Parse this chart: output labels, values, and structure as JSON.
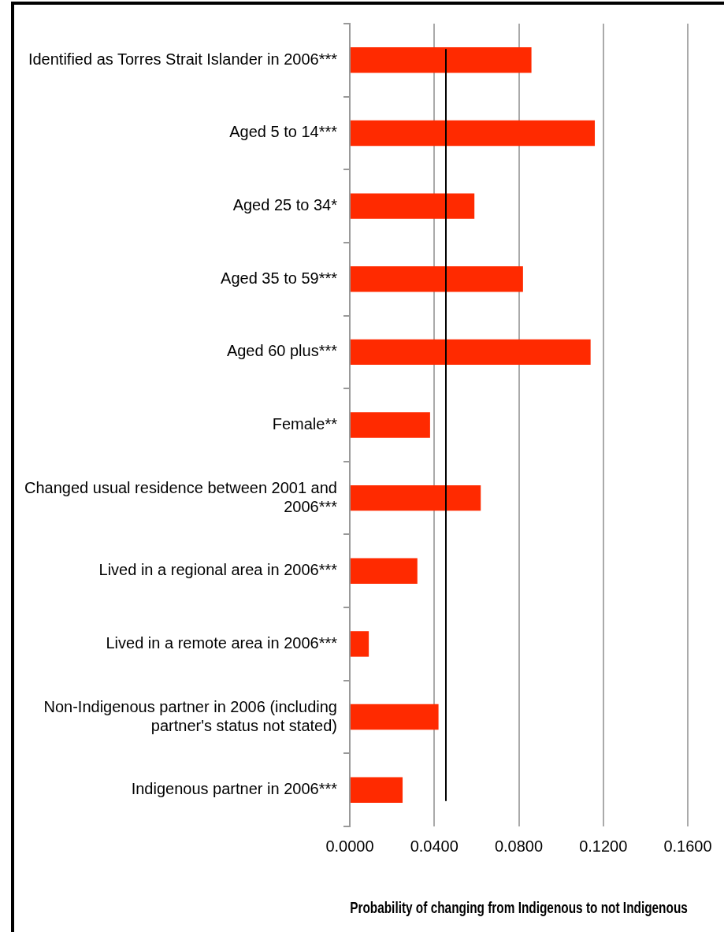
{
  "chart_data": {
    "type": "bar",
    "orientation": "horizontal",
    "xlabel": "Probability of changing from Indigenous to not Indigenous",
    "categories": [
      "Identified as Torres Strait Islander in 2006***",
      "Aged 5 to 14***",
      "Aged 25 to 34*",
      "Aged 35 to 59***",
      "Aged 60 plus***",
      "Female**",
      "Changed usual residence between 2001 and 2006***",
      "Lived in a regional area in 2006***",
      "Lived in a remote area in 2006***",
      "Non-Indigenous partner in 2006 (including partner's status not stated)",
      "Indigenous partner in 2006***"
    ],
    "values": [
      0.086,
      0.116,
      0.059,
      0.082,
      0.114,
      0.038,
      0.062,
      0.032,
      0.009,
      0.042,
      0.025
    ],
    "color": "#ff2a00",
    "xlim": [
      0,
      0.16
    ],
    "xticks": [
      {
        "value": 0,
        "label": "0.0000"
      },
      {
        "value": 0.04,
        "label": "0.0400"
      },
      {
        "value": 0.08,
        "label": "0.0800"
      },
      {
        "value": 0.12,
        "label": "0.1200"
      },
      {
        "value": 0.16,
        "label": "0.1600"
      }
    ],
    "grid": "x",
    "ref_lines": [
      {
        "axis": "x",
        "value": 0.0455,
        "color": "#000000"
      }
    ]
  }
}
